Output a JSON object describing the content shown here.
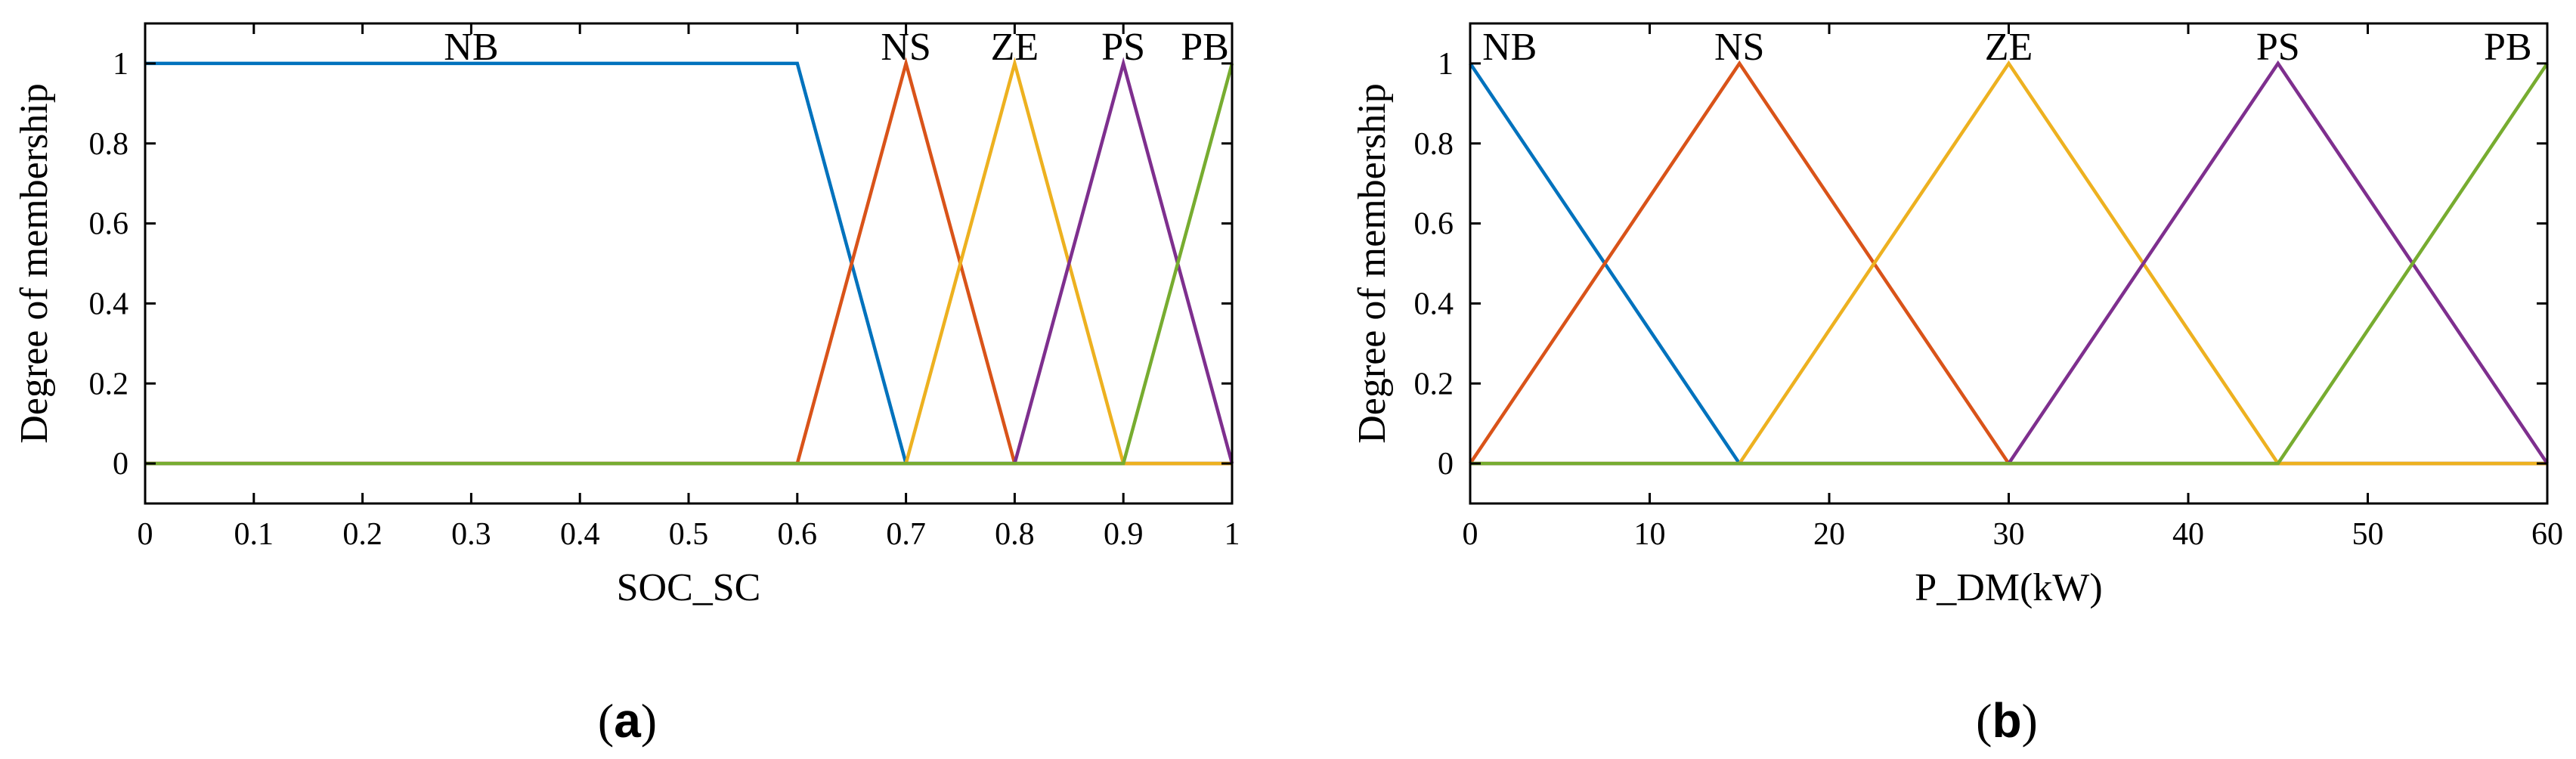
{
  "chart_data": [
    {
      "type": "line",
      "panel_label": {
        "open": "(",
        "letter": "a",
        "close": ")"
      },
      "xlabel": "SOC_SC",
      "ylabel": "Degree of membership",
      "xlim": [
        0,
        1
      ],
      "ylim": [
        -0.1,
        1.1
      ],
      "xticks": [
        0,
        0.1,
        0.2,
        0.3,
        0.4,
        0.5,
        0.6,
        0.7,
        0.8,
        0.9,
        1
      ],
      "xtick_labels": [
        "0",
        "0.1",
        "0.2",
        "0.3",
        "0.4",
        "0.5",
        "0.6",
        "0.7",
        "0.8",
        "0.9",
        "1"
      ],
      "yticks": [
        0,
        0.2,
        0.4,
        0.6,
        0.8,
        1
      ],
      "ytick_labels": [
        "0",
        "0.2",
        "0.4",
        "0.6",
        "0.8",
        "1"
      ],
      "grid": false,
      "series": [
        {
          "name": "NB",
          "color": "#0072BD",
          "label_x": 0.3,
          "x": [
            0,
            0.6,
            0.7,
            1
          ],
          "y": [
            1,
            1,
            0,
            0
          ]
        },
        {
          "name": "NS",
          "color": "#D95319",
          "label_x": 0.7,
          "x": [
            0,
            0.6,
            0.7,
            0.8,
            1
          ],
          "y": [
            0,
            0,
            1,
            0,
            0
          ]
        },
        {
          "name": "ZE",
          "color": "#EDB120",
          "label_x": 0.8,
          "x": [
            0,
            0.7,
            0.8,
            0.9,
            1
          ],
          "y": [
            0,
            0,
            1,
            0,
            0
          ]
        },
        {
          "name": "PS",
          "color": "#7E2F8E",
          "label_x": 0.9,
          "x": [
            0,
            0.8,
            0.9,
            1
          ],
          "y": [
            0,
            0,
            1,
            0
          ]
        },
        {
          "name": "PB",
          "color": "#77AC30",
          "label_x": 0.975,
          "x": [
            0,
            0.9,
            1
          ],
          "y": [
            0,
            0,
            1
          ]
        }
      ]
    },
    {
      "type": "line",
      "panel_label": {
        "open": "(",
        "letter": "b",
        "close": ")"
      },
      "xlabel": "P_DM(kW)",
      "ylabel": "Degree of membership",
      "xlim": [
        0,
        60
      ],
      "ylim": [
        -0.1,
        1.1
      ],
      "xticks": [
        0,
        10,
        20,
        30,
        40,
        50,
        60
      ],
      "xtick_labels": [
        "0",
        "10",
        "20",
        "30",
        "40",
        "50",
        "60"
      ],
      "yticks": [
        0,
        0.2,
        0.4,
        0.6,
        0.8,
        1
      ],
      "ytick_labels": [
        "0",
        "0.2",
        "0.4",
        "0.6",
        "0.8",
        "1"
      ],
      "grid": false,
      "series": [
        {
          "name": "NB",
          "color": "#0072BD",
          "label_x": 2.2,
          "x": [
            0,
            15,
            60
          ],
          "y": [
            1,
            0,
            0
          ]
        },
        {
          "name": "NS",
          "color": "#D95319",
          "label_x": 15,
          "x": [
            0,
            15,
            30,
            60
          ],
          "y": [
            0,
            1,
            0,
            0
          ]
        },
        {
          "name": "ZE",
          "color": "#EDB120",
          "label_x": 30,
          "x": [
            0,
            15,
            30,
            45,
            60
          ],
          "y": [
            0,
            0,
            1,
            0,
            0
          ]
        },
        {
          "name": "PS",
          "color": "#7E2F8E",
          "label_x": 45,
          "x": [
            0,
            30,
            45,
            60
          ],
          "y": [
            0,
            0,
            1,
            0
          ]
        },
        {
          "name": "PB",
          "color": "#77AC30",
          "label_x": 57.8,
          "x": [
            0,
            45,
            60
          ],
          "y": [
            0,
            0,
            1
          ]
        }
      ]
    }
  ]
}
